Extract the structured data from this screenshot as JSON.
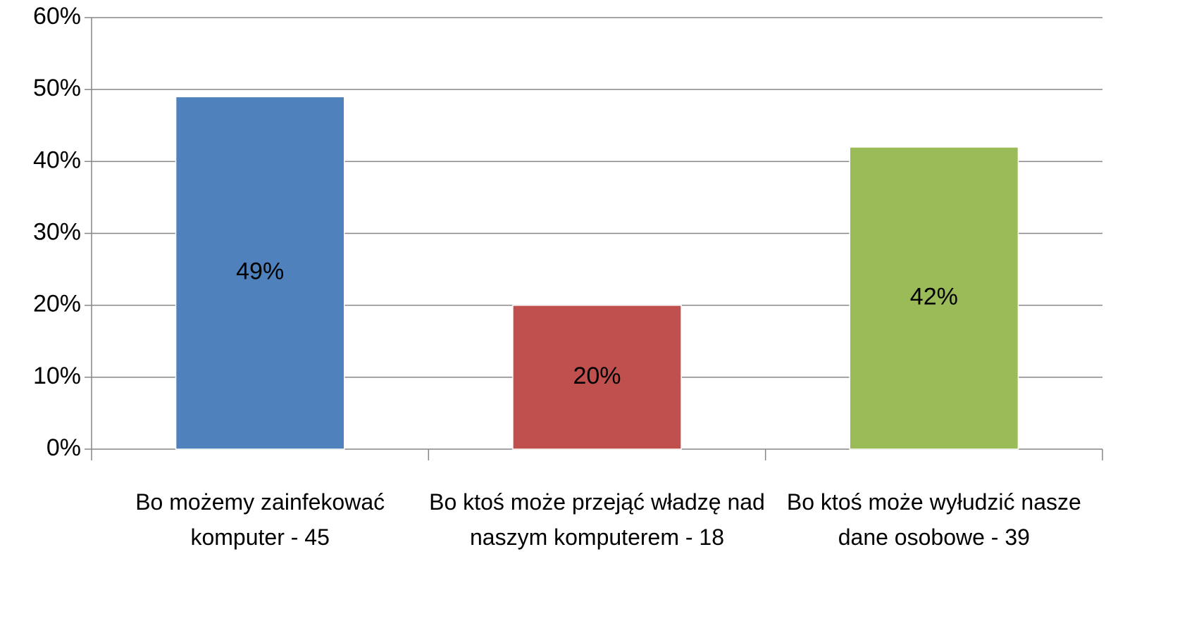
{
  "chart_data": {
    "type": "bar",
    "categories": [
      "Bo możemy zainfekować komputer - 45",
      "Bo ktoś może przejąć władzę nad naszym komputerem - 18",
      "Bo ktoś może wyłudzić nasze dane osobowe - 39"
    ],
    "values": [
      49,
      20,
      42
    ],
    "value_labels": [
      "49%",
      "20%",
      "42%"
    ],
    "colors": [
      "#4f81bd",
      "#c0504d",
      "#9bbb59"
    ],
    "ylim": [
      0,
      60
    ],
    "yticks": [
      {
        "value": 0,
        "label": "0%"
      },
      {
        "value": 10,
        "label": "10%"
      },
      {
        "value": 20,
        "label": "20%"
      },
      {
        "value": 30,
        "label": "30%"
      },
      {
        "value": 40,
        "label": "40%"
      },
      {
        "value": 50,
        "label": "50%"
      },
      {
        "value": 60,
        "label": "60%"
      }
    ],
    "grid": true
  }
}
